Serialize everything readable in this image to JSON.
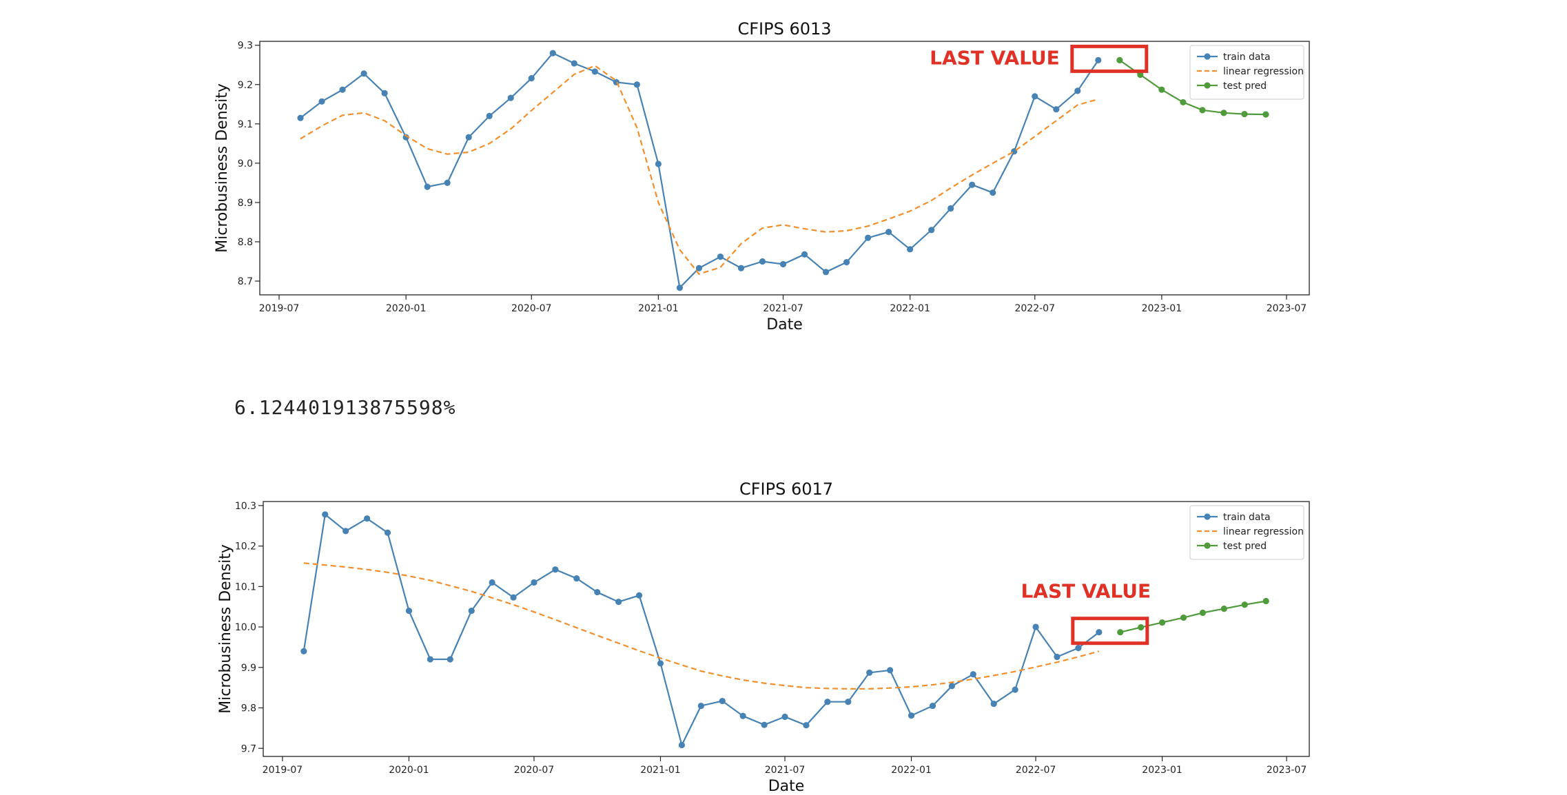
{
  "output_text": "6.124401913875598%",
  "annotation_label": "LAST VALUE",
  "colors": {
    "train": "#4682b4",
    "regression": "#f28e2b",
    "test": "#4f9a3a",
    "annotation": "#e03127"
  },
  "chart_data": [
    {
      "type": "line",
      "title": "CFIPS 6013",
      "xlabel": "Date",
      "ylabel": "Microbusiness Density",
      "x_axis": {
        "type": "date",
        "range": [
          "2019-06-03",
          "2023-08-03"
        ],
        "ticks": [
          "2019-07",
          "2020-01",
          "2020-07",
          "2021-01",
          "2021-07",
          "2022-01",
          "2022-07",
          "2023-01",
          "2023-07"
        ]
      },
      "ylim": [
        8.665,
        9.31
      ],
      "yticks": [
        8.7,
        8.8,
        8.9,
        9.0,
        9.1,
        9.2,
        9.3
      ],
      "grid": false,
      "legend_position": "top-right",
      "series": [
        {
          "name": "train data",
          "style": "line-marker",
          "x": [
            "2019-08",
            "2019-09",
            "2019-10",
            "2019-11",
            "2019-12",
            "2020-01",
            "2020-02",
            "2020-03",
            "2020-04",
            "2020-05",
            "2020-06",
            "2020-07",
            "2020-08",
            "2020-09",
            "2020-10",
            "2020-11",
            "2020-12",
            "2021-01",
            "2021-02",
            "2021-03",
            "2021-04",
            "2021-05",
            "2021-06",
            "2021-07",
            "2021-08",
            "2021-09",
            "2021-10",
            "2021-11",
            "2021-12",
            "2022-01",
            "2022-02",
            "2022-03",
            "2022-04",
            "2022-05",
            "2022-06",
            "2022-07",
            "2022-08",
            "2022-09",
            "2022-10"
          ],
          "y": [
            9.115,
            9.157,
            9.187,
            9.228,
            9.178,
            9.066,
            8.94,
            8.95,
            9.066,
            9.12,
            9.166,
            9.216,
            9.28,
            9.254,
            9.233,
            9.206,
            9.2,
            8.998,
            8.683,
            8.733,
            8.762,
            8.733,
            8.75,
            8.743,
            8.768,
            8.723,
            8.748,
            8.81,
            8.825,
            8.781,
            8.83,
            8.885,
            8.945,
            8.925,
            9.03,
            9.17,
            9.137,
            9.184,
            9.262
          ]
        },
        {
          "name": "linear regression",
          "style": "dashed",
          "x": [
            "2019-08",
            "2019-09",
            "2019-10",
            "2019-11",
            "2019-12",
            "2020-01",
            "2020-02",
            "2020-03",
            "2020-04",
            "2020-05",
            "2020-06",
            "2020-07",
            "2020-08",
            "2020-09",
            "2020-10",
            "2020-11",
            "2020-12",
            "2021-01",
            "2021-02",
            "2021-03",
            "2021-04",
            "2021-05",
            "2021-06",
            "2021-07",
            "2021-08",
            "2021-09",
            "2021-10",
            "2021-11",
            "2021-12",
            "2022-01",
            "2022-02",
            "2022-03",
            "2022-04",
            "2022-05",
            "2022-06",
            "2022-07",
            "2022-08",
            "2022-09",
            "2022-10"
          ],
          "y": [
            9.062,
            9.095,
            9.122,
            9.128,
            9.108,
            9.07,
            9.037,
            9.023,
            9.028,
            9.05,
            9.087,
            9.134,
            9.18,
            9.226,
            9.248,
            9.21,
            9.09,
            8.9,
            8.78,
            8.718,
            8.735,
            8.795,
            8.835,
            8.843,
            8.833,
            8.825,
            8.828,
            8.84,
            8.858,
            8.878,
            8.905,
            8.937,
            8.97,
            9.0,
            9.03,
            9.068,
            9.108,
            9.148,
            9.163
          ]
        },
        {
          "name": "test pred",
          "style": "line-marker",
          "x": [
            "2022-11",
            "2022-12",
            "2023-01",
            "2023-02",
            "2023-03",
            "2023-04",
            "2023-05",
            "2023-06"
          ],
          "y": [
            9.262,
            9.225,
            9.187,
            9.155,
            9.135,
            9.128,
            9.125,
            9.124
          ]
        }
      ],
      "annotations": [
        {
          "text": "LAST VALUE",
          "x": "2022-10",
          "y": 9.262
        }
      ]
    },
    {
      "type": "line",
      "title": "CFIPS 6017",
      "xlabel": "Date",
      "ylabel": "Microbusiness Density",
      "x_axis": {
        "type": "date",
        "range": [
          "2019-06-03",
          "2023-08-03"
        ],
        "ticks": [
          "2019-07",
          "2020-01",
          "2020-07",
          "2021-01",
          "2021-07",
          "2022-01",
          "2022-07",
          "2023-01",
          "2023-07"
        ]
      },
      "ylim": [
        9.68,
        10.31
      ],
      "yticks": [
        9.7,
        9.8,
        9.9,
        10.0,
        10.1,
        10.2,
        10.3
      ],
      "grid": false,
      "legend_position": "top-right",
      "series": [
        {
          "name": "train data",
          "style": "line-marker",
          "x": [
            "2019-08",
            "2019-09",
            "2019-10",
            "2019-11",
            "2019-12",
            "2020-01",
            "2020-02",
            "2020-03",
            "2020-04",
            "2020-05",
            "2020-06",
            "2020-07",
            "2020-08",
            "2020-09",
            "2020-10",
            "2020-11",
            "2020-12",
            "2021-01",
            "2021-02",
            "2021-03",
            "2021-04",
            "2021-05",
            "2021-06",
            "2021-07",
            "2021-08",
            "2021-09",
            "2021-10",
            "2021-11",
            "2021-12",
            "2022-01",
            "2022-02",
            "2022-03",
            "2022-04",
            "2022-05",
            "2022-06",
            "2022-07",
            "2022-08",
            "2022-09",
            "2022-10"
          ],
          "y": [
            9.94,
            10.278,
            10.237,
            10.268,
            10.233,
            10.04,
            9.92,
            9.92,
            10.04,
            10.11,
            10.073,
            10.11,
            10.142,
            10.12,
            10.086,
            10.062,
            10.078,
            9.91,
            9.708,
            9.805,
            9.817,
            9.78,
            9.758,
            9.778,
            9.757,
            9.815,
            9.815,
            9.887,
            9.893,
            9.781,
            9.805,
            9.854,
            9.883,
            9.81,
            9.845,
            10.0,
            9.926,
            9.948,
            9.987
          ]
        },
        {
          "name": "linear regression",
          "style": "dashed",
          "x": [
            "2019-08",
            "2019-09",
            "2019-10",
            "2019-11",
            "2019-12",
            "2020-01",
            "2020-02",
            "2020-03",
            "2020-04",
            "2020-05",
            "2020-06",
            "2020-07",
            "2020-08",
            "2020-09",
            "2020-10",
            "2020-11",
            "2020-12",
            "2021-01",
            "2021-02",
            "2021-03",
            "2021-04",
            "2021-05",
            "2021-06",
            "2021-07",
            "2021-08",
            "2021-09",
            "2021-10",
            "2021-11",
            "2021-12",
            "2022-01",
            "2022-02",
            "2022-03",
            "2022-04",
            "2022-05",
            "2022-06",
            "2022-07",
            "2022-08",
            "2022-09",
            "2022-10"
          ],
          "y": [
            10.158,
            10.153,
            10.148,
            10.142,
            10.135,
            10.126,
            10.115,
            10.102,
            10.088,
            10.072,
            10.055,
            10.037,
            10.018,
            9.998,
            9.979,
            9.96,
            9.941,
            9.923,
            9.906,
            9.891,
            9.879,
            9.869,
            9.861,
            9.855,
            9.85,
            9.848,
            9.847,
            9.847,
            9.849,
            9.852,
            9.857,
            9.863,
            9.871,
            9.88,
            9.89,
            9.901,
            9.913,
            9.926,
            9.94
          ]
        },
        {
          "name": "test pred",
          "style": "line-marker",
          "x": [
            "2022-11",
            "2022-12",
            "2023-01",
            "2023-02",
            "2023-03",
            "2023-04",
            "2023-05",
            "2023-06"
          ],
          "y": [
            9.987,
            9.999,
            10.011,
            10.023,
            10.035,
            10.045,
            10.055,
            10.064
          ]
        }
      ],
      "annotations": [
        {
          "text": "LAST VALUE",
          "x": "2022-10",
          "y": 9.987
        }
      ]
    }
  ]
}
